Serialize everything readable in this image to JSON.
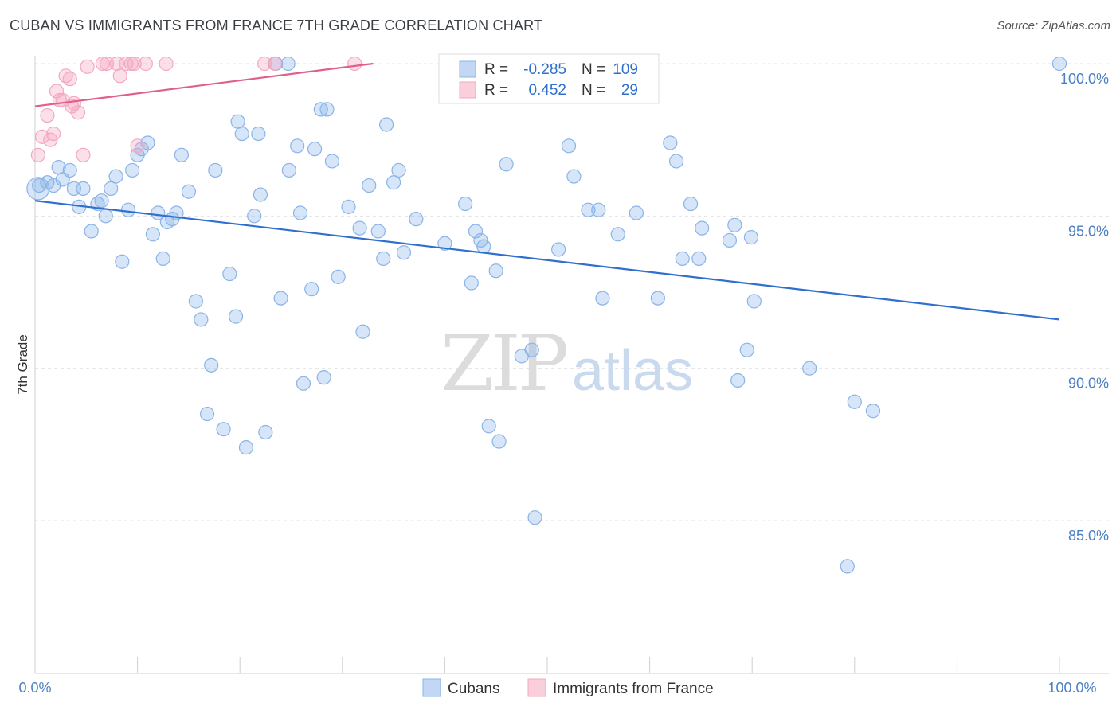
{
  "title": "CUBAN VS IMMIGRANTS FROM FRANCE 7TH GRADE CORRELATION CHART",
  "source": "Source: ZipAtlas.com",
  "watermark": {
    "zip": "ZIP",
    "atlas": "atlas"
  },
  "legend_box": {
    "rows": [
      {
        "r_label": "R =",
        "r_value": "-0.285",
        "n_label": "N =",
        "n_value": "109"
      },
      {
        "r_label": "R =",
        "r_value": "0.452",
        "n_label": "N =",
        "n_value": "29"
      }
    ]
  },
  "chart_data": {
    "type": "scatter",
    "title": "CUBAN VS IMMIGRANTS FROM FRANCE 7TH GRADE CORRELATION CHART",
    "xlabel": "",
    "ylabel": "7th Grade",
    "xlim": [
      0,
      100
    ],
    "ylim": [
      80.0,
      100.5
    ],
    "x_tick_labels": [
      "0.0%",
      "100.0%"
    ],
    "y_ticks": [
      85,
      90,
      95,
      100
    ],
    "y_tick_labels": [
      "85.0%",
      "90.0%",
      "95.0%",
      "100.0%"
    ],
    "grid": true,
    "legend_placement": "top-center",
    "series": [
      {
        "name": "Cubans",
        "color": "#8ab4e8",
        "line_color": "#2f6fce",
        "r": "-0.285",
        "n": "109",
        "trend": {
          "x": [
            0,
            100
          ],
          "y": [
            95.5,
            91.6
          ]
        },
        "points": [
          [
            0.4,
            96.0
          ],
          [
            1.2,
            96.1
          ],
          [
            1.8,
            96.0
          ],
          [
            2.3,
            96.6
          ],
          [
            2.7,
            96.2
          ],
          [
            3.4,
            96.5
          ],
          [
            3.8,
            95.9
          ],
          [
            4.3,
            95.3
          ],
          [
            4.7,
            95.9
          ],
          [
            5.5,
            94.5
          ],
          [
            6.1,
            95.4
          ],
          [
            6.5,
            95.5
          ],
          [
            6.9,
            95.0
          ],
          [
            7.4,
            95.9
          ],
          [
            7.9,
            96.3
          ],
          [
            8.5,
            93.5
          ],
          [
            9.1,
            95.2
          ],
          [
            9.5,
            96.5
          ],
          [
            10.0,
            97.0
          ],
          [
            10.4,
            97.2
          ],
          [
            11.0,
            97.4
          ],
          [
            11.5,
            94.4
          ],
          [
            12.0,
            95.1
          ],
          [
            12.5,
            93.6
          ],
          [
            12.9,
            94.8
          ],
          [
            13.4,
            94.9
          ],
          [
            13.8,
            95.1
          ],
          [
            14.3,
            97.0
          ],
          [
            15.0,
            95.8
          ],
          [
            15.7,
            92.2
          ],
          [
            16.2,
            91.6
          ],
          [
            16.8,
            88.5
          ],
          [
            17.2,
            90.1
          ],
          [
            17.6,
            96.5
          ],
          [
            18.4,
            88.0
          ],
          [
            19.0,
            93.1
          ],
          [
            19.6,
            91.7
          ],
          [
            19.8,
            98.1
          ],
          [
            20.2,
            97.7
          ],
          [
            20.6,
            87.4
          ],
          [
            21.4,
            95.0
          ],
          [
            21.8,
            97.7
          ],
          [
            22.0,
            95.7
          ],
          [
            22.5,
            87.9
          ],
          [
            23.5,
            100.0
          ],
          [
            24.0,
            92.3
          ],
          [
            24.8,
            96.5
          ],
          [
            24.7,
            100.0
          ],
          [
            25.6,
            97.3
          ],
          [
            25.9,
            95.1
          ],
          [
            26.2,
            89.5
          ],
          [
            27.0,
            92.6
          ],
          [
            27.3,
            97.2
          ],
          [
            27.9,
            98.5
          ],
          [
            28.2,
            89.7
          ],
          [
            28.5,
            98.5
          ],
          [
            29.0,
            96.8
          ],
          [
            29.6,
            93.0
          ],
          [
            30.6,
            95.3
          ],
          [
            31.7,
            94.6
          ],
          [
            32.0,
            91.2
          ],
          [
            32.6,
            96.0
          ],
          [
            33.5,
            94.5
          ],
          [
            34.0,
            93.6
          ],
          [
            34.3,
            98.0
          ],
          [
            35.0,
            96.1
          ],
          [
            35.5,
            96.5
          ],
          [
            36.0,
            93.8
          ],
          [
            37.2,
            94.9
          ],
          [
            40.0,
            94.1
          ],
          [
            42.0,
            95.4
          ],
          [
            42.6,
            92.8
          ],
          [
            43.0,
            94.5
          ],
          [
            43.5,
            94.2
          ],
          [
            43.8,
            94.0
          ],
          [
            44.3,
            88.1
          ],
          [
            45.0,
            93.2
          ],
          [
            45.3,
            87.6
          ],
          [
            46.0,
            96.7
          ],
          [
            47.5,
            90.4
          ],
          [
            48.5,
            90.6
          ],
          [
            48.8,
            85.1
          ],
          [
            51.1,
            93.9
          ],
          [
            52.1,
            97.3
          ],
          [
            52.6,
            96.3
          ],
          [
            54.0,
            95.2
          ],
          [
            55.0,
            95.2
          ],
          [
            55.4,
            92.3
          ],
          [
            56.9,
            94.4
          ],
          [
            58.7,
            95.1
          ],
          [
            60.8,
            92.3
          ],
          [
            62.0,
            97.4
          ],
          [
            62.6,
            96.8
          ],
          [
            63.2,
            93.6
          ],
          [
            64.0,
            95.4
          ],
          [
            64.8,
            93.6
          ],
          [
            65.1,
            94.6
          ],
          [
            67.8,
            94.2
          ],
          [
            68.3,
            94.7
          ],
          [
            68.6,
            89.6
          ],
          [
            69.5,
            90.6
          ],
          [
            69.9,
            94.3
          ],
          [
            70.2,
            92.2
          ],
          [
            75.6,
            90.0
          ],
          [
            79.3,
            83.5
          ],
          [
            80.0,
            88.9
          ],
          [
            81.8,
            88.6
          ],
          [
            100.0,
            100.0
          ],
          [
            0.3,
            95.9
          ]
        ]
      },
      {
        "name": "Immigrants from France",
        "color": "#f4a7c0",
        "line_color": "#e0608a",
        "r": "0.452",
        "n": "29",
        "trend": {
          "x": [
            0,
            33
          ],
          "y": [
            98.6,
            100.0
          ]
        },
        "points": [
          [
            0.3,
            97.0
          ],
          [
            0.7,
            97.6
          ],
          [
            1.2,
            98.3
          ],
          [
            1.5,
            97.5
          ],
          [
            1.8,
            97.7
          ],
          [
            2.1,
            99.1
          ],
          [
            2.4,
            98.8
          ],
          [
            2.7,
            98.8
          ],
          [
            3.0,
            99.6
          ],
          [
            3.4,
            99.5
          ],
          [
            3.6,
            98.6
          ],
          [
            3.8,
            98.7
          ],
          [
            4.2,
            98.4
          ],
          [
            4.7,
            97.0
          ],
          [
            5.1,
            99.9
          ],
          [
            6.6,
            100.0
          ],
          [
            7.0,
            100.0
          ],
          [
            8.0,
            100.0
          ],
          [
            8.3,
            99.6
          ],
          [
            8.9,
            100.0
          ],
          [
            9.4,
            100.0
          ],
          [
            9.7,
            100.0
          ],
          [
            10.0,
            97.3
          ],
          [
            10.8,
            100.0
          ],
          [
            12.8,
            100.0
          ],
          [
            22.4,
            100.0
          ],
          [
            23.4,
            100.0
          ],
          [
            31.2,
            100.0
          ],
          [
            60.1,
            100.0
          ]
        ]
      }
    ]
  }
}
